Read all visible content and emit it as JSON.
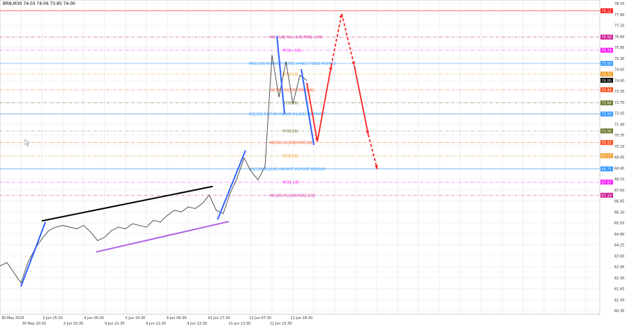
{
  "header": {
    "title": "BRN,M30  74.03 74.06 73.85 74.00"
  },
  "chart_data": {
    "type": "line",
    "symbol": "BRN",
    "timeframe": "M30",
    "ylim": [
      60.35,
      78.55
    ],
    "y_ticks": [
      78.55,
      77.9,
      77.25,
      76.6,
      75.95,
      75.3,
      74.65,
      74.0,
      73.35,
      72.7,
      72.05,
      71.4,
      70.75,
      70.1,
      69.45,
      68.8,
      68.15,
      67.5,
      66.85,
      66.2,
      65.55,
      64.9,
      64.25,
      63.6,
      62.95,
      62.3,
      61.65,
      61.0,
      60.35
    ],
    "x_ticks": [
      "30 May 2025",
      "30 May 20:30",
      "2 Jun 15:30",
      "3 Jun 10:30",
      "4 Jun 05:30",
      "4 Jun 21:30",
      "5 Jun 16:30",
      "6 Jun 11:30",
      "9 Jun 06:30",
      "9 Jun 22:30",
      "10 Jun 17:30",
      "11 Jun 12:30",
      "12 Jun 07:30",
      "12 Jun 23:30",
      "13 Jun 18:30"
    ],
    "grid": true,
    "series": [
      {
        "values": [
          63.0,
          63.2,
          62.6,
          62.0,
          63.2,
          64.0,
          64.6,
          65.1,
          65.3,
          65.4,
          65.3,
          65.2,
          65.4,
          65.0,
          64.5,
          64.7,
          65.1,
          65.3,
          65.2,
          65.5,
          65.4,
          65.3,
          65.7,
          65.6,
          66.0,
          66.3,
          66.2,
          66.5,
          66.4,
          66.7,
          67.2,
          66.3,
          66.1,
          67.3,
          68.2,
          69.4,
          68.6,
          68.1,
          68.9,
          75.5,
          73.0,
          75.1,
          72.6,
          74.3,
          74.0
        ],
        "color": "#404040"
      }
    ],
    "levels": [
      {
        "price": 78.12,
        "tag": "78.12",
        "color": "#ff2020",
        "style": "solid",
        "label": ""
      },
      {
        "price": 76.56,
        "tag": "76.56",
        "color": "#d0209a",
        "style": "dash",
        "label": "H4[+1/8] H1[+1/8] M30[+2/8]"
      },
      {
        "price": 75.78,
        "tag": "75.78",
        "color": "#ff20ff",
        "style": "dash",
        "label": "M30[+1/8]"
      },
      {
        "price": 75.0,
        "tag": "75.00",
        "color": "#3399ff",
        "style": "solid",
        "label": "MN1[5/8] W1PIVOT H1RES H4RES H1RES M30RES"
      },
      {
        "price": 74.37,
        "tag": "74.37",
        "color": "#f0a030",
        "style": "dash",
        "label": "M30[7/8]"
      },
      {
        "price": 74.0,
        "tag": "74.00",
        "color": "#000000",
        "style": "none",
        "label": ""
      },
      {
        "price": 73.44,
        "tag": "73.44",
        "color": "#ff5020",
        "style": "dash",
        "label": "H4[7/8] H1[7/8] M30[6/8]"
      },
      {
        "price": 72.66,
        "tag": "72.66",
        "color": "#6b7a30",
        "style": "dash",
        "label": "M30[5/8]"
      },
      {
        "price": 72.0,
        "tag": "72.00",
        "color": "#3399ff",
        "style": "solid",
        "label": "W1[3/8] D1[7/8] H4[6/8] H1[6/8] M30PIVOT"
      },
      {
        "price": 71.0,
        "tag": "71.00",
        "color": "#6b7a30",
        "style": "dash",
        "label": "M30[3/8]"
      },
      {
        "price": 70.31,
        "tag": "70.31",
        "color": "#ff5020",
        "style": "dash",
        "label": "H4[5/8] H1[5/8] M30[2/8]"
      },
      {
        "price": 69.53,
        "tag": "69.53",
        "color": "#f0a030",
        "style": "dash",
        "label": "M30[1/8]"
      },
      {
        "price": 68.75,
        "tag": "68.75",
        "color": "#3399ff",
        "style": "solid",
        "label": "W1[2/8] D1[6/8] H4PIVOT H1PIVOT M30SUP"
      },
      {
        "price": 67.97,
        "tag": "67.97",
        "color": "#ff20ff",
        "style": "dash",
        "label": "M30[-1/8]"
      },
      {
        "price": 67.19,
        "tag": "67.19",
        "color": "#d0209a",
        "style": "dash",
        "label": "H4[3/8] H1[3/8] M30[-2/8]"
      }
    ],
    "trendlines": [
      {
        "from": [
          6,
          65.67
        ],
        "to": [
          30.5,
          67.71
        ],
        "color": "#000000"
      },
      {
        "from": [
          13.8,
          63.83
        ],
        "to": [
          32.8,
          65.63
        ],
        "color": "#b060e0"
      },
      {
        "from": [
          3,
          61.78
        ],
        "to": [
          6.5,
          65.59
        ],
        "color": "#3060ff"
      },
      {
        "from": [
          31.2,
          65.75
        ],
        "to": [
          35.2,
          69.84
        ],
        "color": "#3060ff"
      },
      {
        "from": [
          39.7,
          76.63
        ],
        "to": [
          40.8,
          72.01
        ],
        "color": "#3060ff"
      },
      {
        "from": [
          43.2,
          74.66
        ],
        "to": [
          45,
          70.17
        ],
        "color": "#3060ff"
      }
    ],
    "forecast": {
      "color": "#ff2020",
      "points": [
        [
          44,
          73.85
        ],
        [
          45.5,
          70.37
        ],
        [
          47.5,
          74.87
        ],
        [
          49,
          77.94
        ],
        [
          50.8,
          74.87
        ],
        [
          52.8,
          70.78
        ],
        [
          54.1,
          68.73
        ]
      ],
      "dashed": [
        false,
        false,
        true,
        true,
        false,
        true
      ]
    }
  }
}
